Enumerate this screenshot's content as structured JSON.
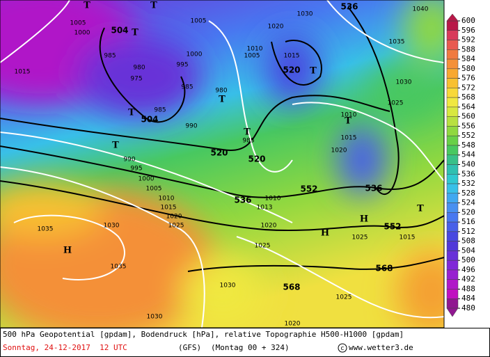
{
  "legend": {
    "labels": [
      600,
      596,
      592,
      588,
      584,
      580,
      576,
      572,
      568,
      564,
      560,
      556,
      552,
      548,
      544,
      540,
      536,
      532,
      528,
      524,
      520,
      516,
      512,
      508,
      504,
      500,
      496,
      492,
      488,
      484,
      480
    ],
    "colors": [
      "#b81848",
      "#d83a5a",
      "#e85a50",
      "#f07a40",
      "#f49038",
      "#f8a830",
      "#f8c030",
      "#f8d838",
      "#f0e840",
      "#d8e840",
      "#b8e040",
      "#90d840",
      "#68d048",
      "#48c860",
      "#38c088",
      "#30c0b0",
      "#30c8d0",
      "#38c0e8",
      "#40a8f0",
      "#4890f0",
      "#4878f0",
      "#4860e8",
      "#4848e0",
      "#5038d8",
      "#6830d8",
      "#8028d8",
      "#9820d0",
      "#b018c8",
      "#c010c0",
      "#901890"
    ]
  },
  "map": {
    "geopotential_labels": [
      504,
      504,
      520,
      520,
      520,
      536,
      536,
      536,
      552,
      552,
      568,
      568
    ],
    "pressure_labels": [
      1005,
      1000,
      985,
      980,
      975,
      995,
      1000,
      1005,
      985,
      980,
      990,
      985,
      1015,
      1010,
      1005,
      1020,
      1030,
      1040,
      1035,
      1030,
      1025,
      1015,
      1010,
      1015,
      1020,
      990,
      995,
      1000,
      1005,
      1010,
      1015,
      1020,
      1025,
      1035,
      1030,
      1035,
      1030,
      1025,
      1020,
      1015,
      1025,
      1025,
      1030,
      1020,
      985,
      1010,
      1013
    ],
    "symbols": [
      "T",
      "T",
      "T",
      "T",
      "T",
      "T",
      "T",
      "T",
      "T",
      "T",
      "H",
      "H",
      "H"
    ]
  },
  "caption": {
    "description": "500 hPa Geopotential [gpdam], Bodendruck [hPa], relative Topographie H500-H1000 [gpdam]",
    "date": "Sonntag, 24-12-2017  12 UTC",
    "model": "(GFS)",
    "run": "(Montag 00 + 324)",
    "source": "www.wetter3.de"
  }
}
